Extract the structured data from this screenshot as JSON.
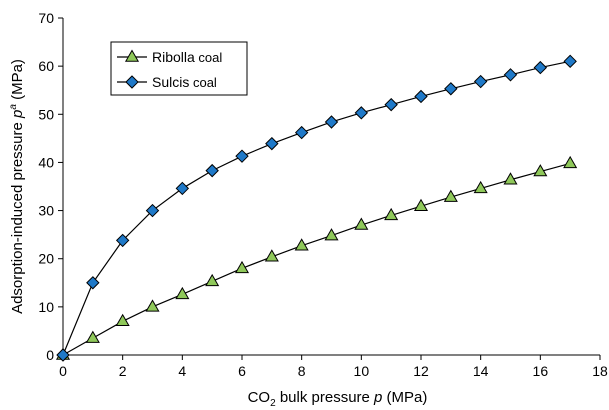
{
  "chart_data": {
    "type": "line",
    "title": "",
    "xlabel": {
      "prefix": "CO",
      "subscript": "2",
      "main": " bulk pressure ",
      "variable": "p",
      "unit": " (MPa)"
    },
    "ylabel": {
      "main": "Adsorption-induced pressure ",
      "variable": "p",
      "superscript": "a",
      "unit": " (MPa)"
    },
    "xlim": [
      0,
      18
    ],
    "ylim": [
      0,
      70
    ],
    "xticks": [
      0,
      2,
      4,
      6,
      8,
      10,
      12,
      14,
      16,
      18
    ],
    "yticks": [
      0,
      10,
      20,
      30,
      40,
      50,
      60,
      70
    ],
    "grid": false,
    "legend_position": "top-left",
    "series": [
      {
        "name_main": "Ribolla",
        "name_suffix": " coal",
        "marker": "triangle",
        "marker_color": "#8fc85a",
        "x": [
          0,
          1,
          2,
          3,
          4,
          5,
          6,
          7,
          8,
          9,
          10,
          11,
          12,
          13,
          14,
          15,
          16,
          17
        ],
        "y": [
          0,
          3.5,
          7.0,
          10.0,
          12.6,
          15.3,
          18.0,
          20.4,
          22.7,
          24.8,
          27.0,
          29.0,
          30.9,
          32.8,
          34.6,
          36.4,
          38.1,
          39.8
        ]
      },
      {
        "name_main": "Sulcis",
        "name_suffix": " coal",
        "marker": "diamond",
        "marker_color": "#1f79c8",
        "x": [
          0,
          1,
          2,
          3,
          4,
          5,
          6,
          7,
          8,
          9,
          10,
          11,
          12,
          13,
          14,
          15,
          16,
          17
        ],
        "y": [
          0,
          15.0,
          23.8,
          30.0,
          34.6,
          38.3,
          41.3,
          43.9,
          46.2,
          48.4,
          50.3,
          52.0,
          53.7,
          55.3,
          56.8,
          58.2,
          59.7,
          61.0
        ]
      }
    ]
  }
}
